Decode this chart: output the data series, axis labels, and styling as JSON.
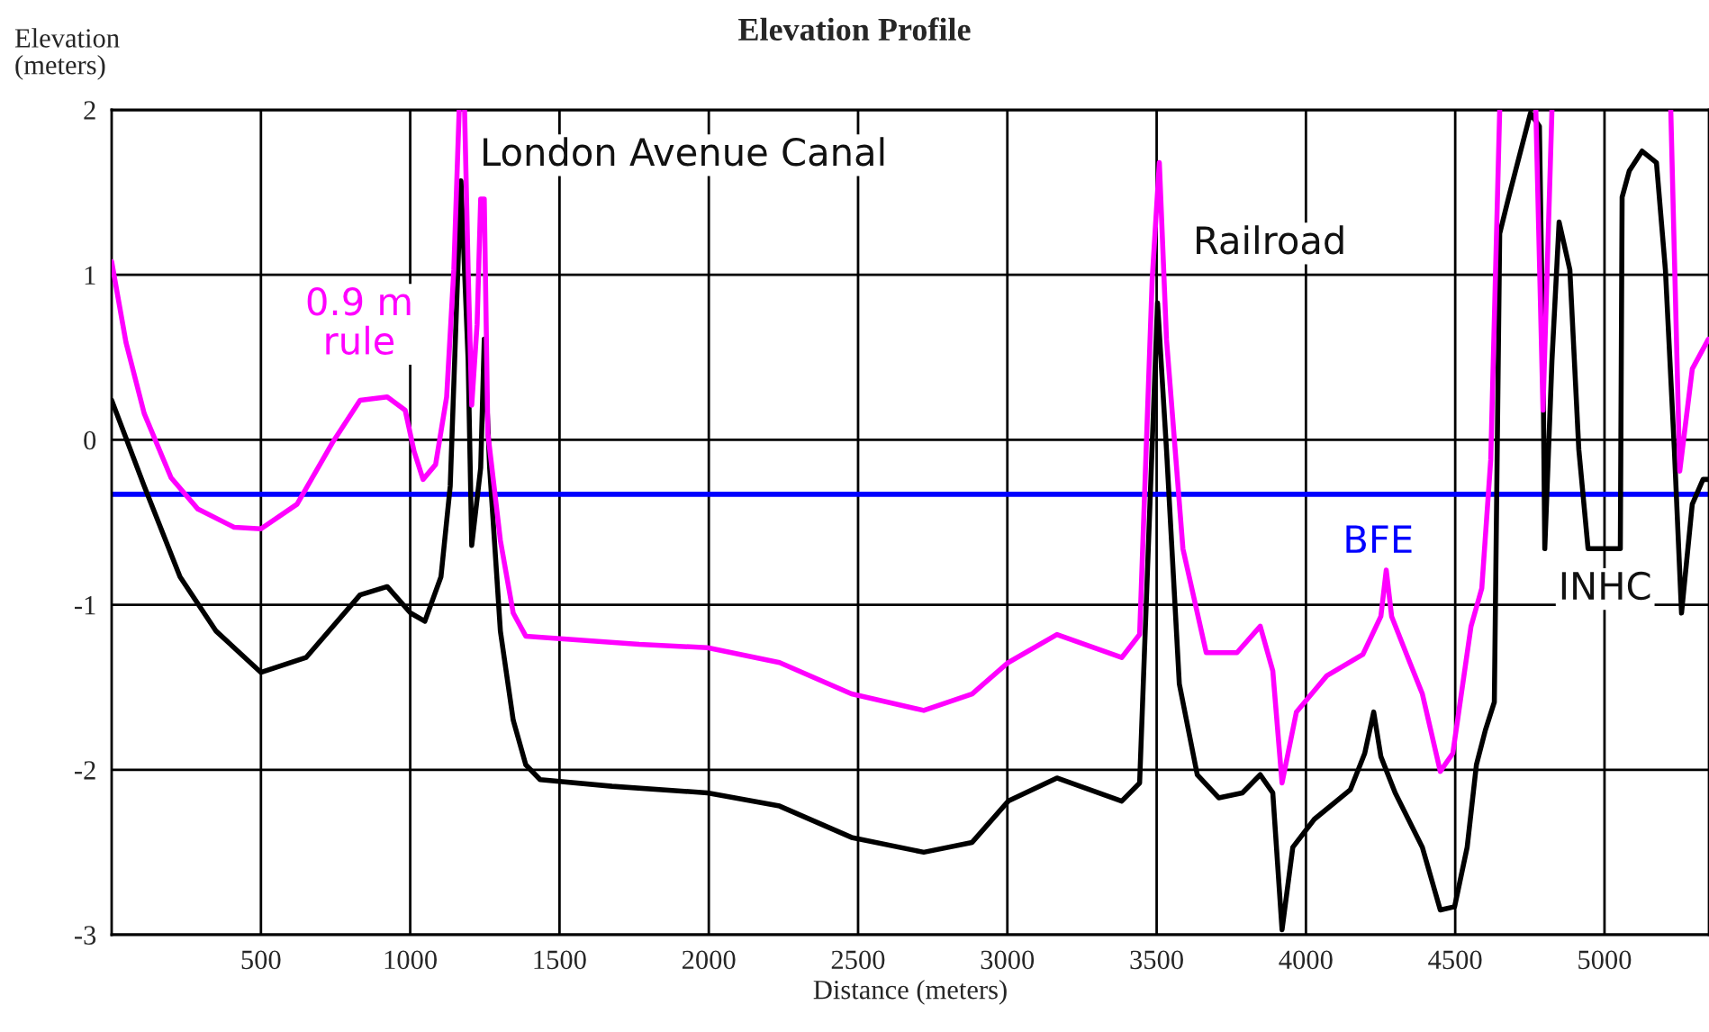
{
  "chart_data": {
    "type": "line",
    "title": "Elevation Profile",
    "xlabel": "Distance (meters)",
    "ylabel": "Elevation\n(meters)",
    "xlim": [
      0,
      5350
    ],
    "ylim": [
      -3,
      2
    ],
    "xticks": [
      500,
      1000,
      1500,
      2000,
      2500,
      3000,
      3500,
      4000,
      4500,
      5000
    ],
    "yticks": [
      -3,
      -2,
      -1,
      0,
      1,
      2
    ],
    "grid": true,
    "legend": false,
    "line_style": "solid",
    "marker": "none",
    "series": [
      {
        "color": "#000000",
        "x": [
          0,
          109,
          229,
          350,
          500,
          651,
          832,
          923,
          1001,
          1049,
          1103,
          1134,
          1170,
          1194,
          1206,
          1236,
          1248,
          1266,
          1302,
          1345,
          1387,
          1435,
          1676,
          1996,
          2237,
          2478,
          2720,
          2882,
          3003,
          3166,
          3383,
          3443,
          3473,
          3503,
          3533,
          3576,
          3636,
          3708,
          3787,
          3847,
          3889,
          3920,
          3956,
          4028,
          4149,
          4197,
          4227,
          4251,
          4299,
          4390,
          4450,
          4498,
          4540,
          4571,
          4601,
          4631,
          4649,
          4679,
          4752,
          4782,
          4794,
          4800,
          4824,
          4848,
          4884,
          4914,
          4945,
          5053,
          5059,
          5083,
          5126,
          5174,
          5204,
          5234,
          5258,
          5294,
          5330,
          5348
        ],
        "values": [
          0.24,
          -0.28,
          -0.83,
          -1.16,
          -1.41,
          -1.32,
          -0.94,
          -0.89,
          -1.05,
          -1.1,
          -0.83,
          -0.28,
          1.57,
          0.48,
          -0.64,
          -0.17,
          0.61,
          -0.17,
          -1.16,
          -1.7,
          -1.97,
          -2.06,
          -2.1,
          -2.14,
          -2.22,
          -2.41,
          -2.5,
          -2.44,
          -2.19,
          -2.05,
          -2.19,
          -2.08,
          -0.61,
          0.83,
          -0.06,
          -1.48,
          -2.03,
          -2.17,
          -2.14,
          -2.03,
          -2.14,
          -2.97,
          -2.47,
          -2.3,
          -2.12,
          -1.9,
          -1.65,
          -1.92,
          -2.14,
          -2.47,
          -2.85,
          -2.83,
          -2.47,
          -1.97,
          -1.76,
          -1.59,
          1.25,
          1.47,
          1.98,
          1.9,
          0.48,
          -0.66,
          0.48,
          1.32,
          1.03,
          -0.06,
          -0.66,
          -0.66,
          1.47,
          1.63,
          1.75,
          1.68,
          1.03,
          -0.06,
          -1.05,
          -0.39,
          -0.24,
          -0.24
        ]
      },
      {
        "name": "0.9 m\nrule",
        "color": "#ff00ff",
        "x": [
          0,
          48,
          109,
          199,
          289,
          410,
          500,
          621,
          742,
          832,
          923,
          983,
          1013,
          1043,
          1085,
          1122,
          1146,
          1164,
          1173,
          1182,
          1194,
          1206,
          1224,
          1236,
          1248,
          1260,
          1302,
          1345,
          1387,
          1767,
          1996,
          2237,
          2478,
          2720,
          2882,
          3003,
          3166,
          3383,
          3443,
          3485,
          3509,
          3533,
          3588,
          3666,
          3769,
          3847,
          3889,
          3920,
          3968,
          4070,
          4191,
          4251,
          4269,
          4287,
          4348,
          4390,
          4450,
          4492,
          4553,
          4589,
          4619,
          4649,
          4700,
          4770,
          4794,
          4824,
          5000,
          5222,
          5252,
          5294,
          5348
        ],
        "values": [
          1.08,
          0.59,
          0.16,
          -0.23,
          -0.42,
          -0.53,
          -0.54,
          -0.39,
          -0.01,
          0.24,
          0.26,
          0.18,
          -0.07,
          -0.24,
          -0.15,
          0.26,
          1.03,
          2.0,
          null,
          2.0,
          1.03,
          0.21,
          0.7,
          1.46,
          1.46,
          0.04,
          -0.61,
          -1.05,
          -1.19,
          -1.24,
          -1.26,
          -1.35,
          -1.54,
          -1.64,
          -1.54,
          -1.35,
          -1.18,
          -1.32,
          -1.18,
          0.97,
          1.68,
          0.61,
          -0.66,
          -1.29,
          -1.29,
          -1.13,
          -1.4,
          -2.08,
          -1.65,
          -1.43,
          -1.3,
          -1.07,
          -0.79,
          -1.07,
          -1.35,
          -1.54,
          -2.01,
          -1.9,
          -1.13,
          -0.9,
          -0.12,
          2.0,
          null,
          2.0,
          0.18,
          2.0,
          null,
          2.0,
          -0.19,
          0.43,
          0.61
        ]
      }
    ],
    "ref_lines": [
      {
        "axis": "y",
        "value": -0.33,
        "label": "BFE",
        "color": "#0000ff"
      }
    ],
    "annotations": [
      "London Avenue Canal",
      "Railroad",
      "INHC"
    ]
  }
}
